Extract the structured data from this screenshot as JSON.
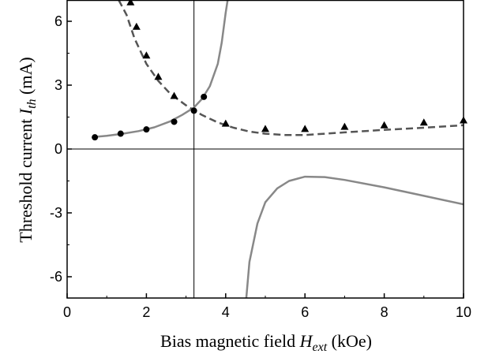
{
  "chart_data": {
    "type": "line",
    "title": "",
    "xlabel": {
      "prefix": "Bias magnetic field ",
      "symbol": "H",
      "subscript": "ext",
      "unit": " (kOe)"
    },
    "ylabel": {
      "prefix": "Threshold current  ",
      "symbol": "I",
      "subscript": "th",
      "unit": "  (mA)"
    },
    "xlim": [
      0,
      10
    ],
    "ylim": [
      -7,
      7
    ],
    "x_ticks": [
      "0",
      "2",
      "4",
      "6",
      "8",
      "10"
    ],
    "y_ticks": [
      "-6",
      "-3",
      "0",
      "3",
      "6"
    ],
    "grid": false,
    "reference_lines": {
      "x": 3.2,
      "y": 0
    },
    "series": [
      {
        "style": "solid",
        "color": "#888888",
        "x": [
          0.7,
          1.0,
          1.4,
          1.8,
          2.2,
          2.6,
          2.9,
          3.2,
          3.4,
          3.6,
          3.8,
          3.9,
          4.0,
          4.05
        ],
        "y": [
          0.57,
          0.62,
          0.72,
          0.84,
          1.02,
          1.3,
          1.6,
          1.95,
          2.35,
          2.95,
          4.0,
          5.0,
          6.4,
          7.0
        ]
      },
      {
        "style": "solid",
        "color": "#888888",
        "x": [
          4.52,
          4.6,
          4.8,
          5.0,
          5.3,
          5.6,
          6.0,
          6.5,
          7.0,
          8.0,
          9.0,
          10.0
        ],
        "y": [
          -7.0,
          -5.3,
          -3.5,
          -2.5,
          -1.85,
          -1.5,
          -1.3,
          -1.32,
          -1.45,
          -1.8,
          -2.2,
          -2.6
        ]
      },
      {
        "style": "dashed",
        "color": "#555555",
        "x": [
          1.3,
          1.5,
          1.7,
          2.0,
          2.3,
          2.6,
          3.0,
          3.4,
          3.8,
          4.2,
          4.6,
          5.0,
          5.5,
          6.0,
          6.5,
          7.0,
          8.0,
          9.0,
          10.0
        ],
        "y": [
          7.0,
          6.3,
          5.2,
          4.0,
          3.2,
          2.6,
          2.05,
          1.6,
          1.25,
          1.0,
          0.82,
          0.72,
          0.66,
          0.66,
          0.72,
          0.78,
          0.9,
          1.0,
          1.12
        ]
      },
      {
        "marker": "circle",
        "color": "#000000",
        "x": [
          0.7,
          1.35,
          2.0,
          2.7,
          3.2,
          3.45
        ],
        "y": [
          0.55,
          0.72,
          0.92,
          1.28,
          1.8,
          2.45
        ]
      },
      {
        "marker": "triangle",
        "color": "#000000",
        "x": [
          1.6,
          1.75,
          2.0,
          2.3,
          2.7,
          4.0,
          5.0,
          6.0,
          7.0,
          8.0,
          9.0,
          10.0
        ],
        "y": [
          6.9,
          5.75,
          4.4,
          3.4,
          2.5,
          1.2,
          0.95,
          0.95,
          1.05,
          1.12,
          1.25,
          1.35
        ]
      }
    ]
  }
}
